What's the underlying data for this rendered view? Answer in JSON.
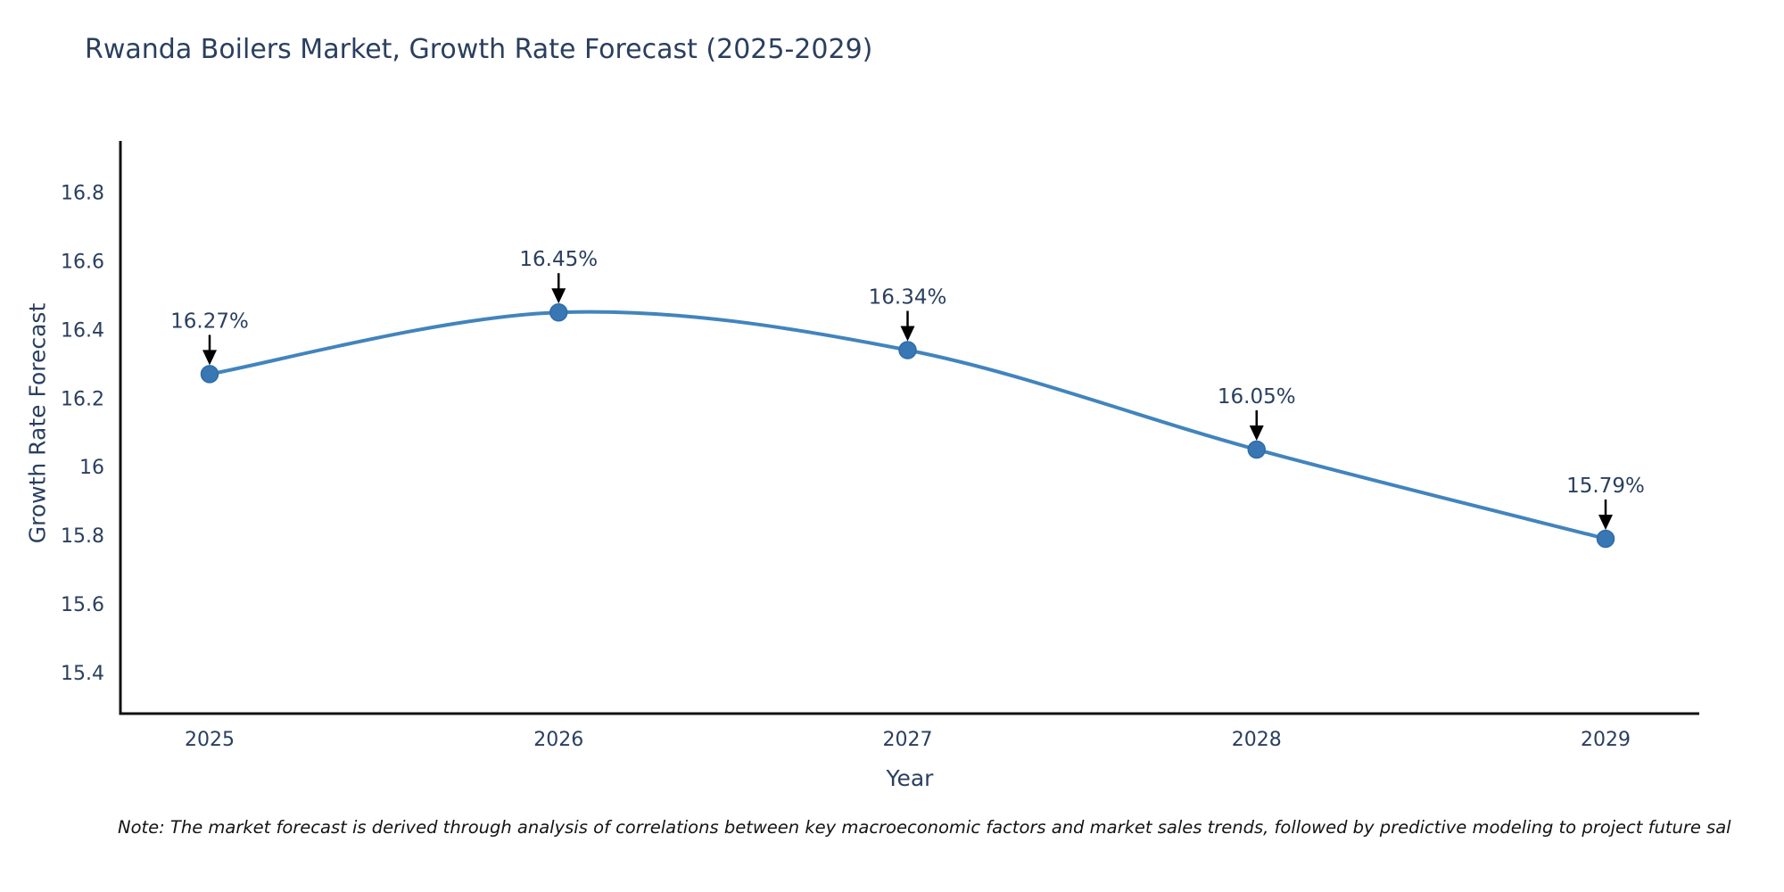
{
  "title": "Rwanda Boilers Market, Growth Rate Forecast (2025-2029)",
  "note": "Note: The market forecast is derived through analysis of correlations between key macroeconomic factors and market sales trends, followed by predictive modeling to project future sal",
  "chart_data": {
    "type": "line",
    "title": "Rwanda Boilers Market, Growth Rate Forecast (2025-2029)",
    "xlabel": "Year",
    "ylabel": "Growth Rate Forecast",
    "x": [
      2025,
      2026,
      2027,
      2028,
      2029
    ],
    "values": [
      16.27,
      16.45,
      16.34,
      16.05,
      15.79
    ],
    "point_labels": [
      "16.27%",
      "16.45%",
      "16.34%",
      "16.05%",
      "15.79%"
    ],
    "xtick_labels": [
      "2025",
      "2026",
      "2027",
      "2028",
      "2029"
    ],
    "yticks": [
      15.4,
      15.6,
      15.8,
      16.0,
      16.2,
      16.4,
      16.6,
      16.8
    ],
    "ytick_labels": [
      "15.4",
      "15.6",
      "15.8",
      "16",
      "16.2",
      "16.4",
      "16.6",
      "16.8"
    ],
    "ylim": [
      15.28,
      16.95
    ],
    "line_shape": "spline",
    "grid": false,
    "legend": false,
    "annotations_have_arrows": true,
    "colors": {
      "line": "#4284bd",
      "marker_fill": "#3876b4",
      "marker_edge": "#2f6da8",
      "axis_line": "#111111",
      "tick_text": "#2a3f5f",
      "annotation_text": "#2a3f5f",
      "annotation_arrow": "#000000",
      "title_text": "#2a3f5f",
      "background": "#ffffff"
    }
  }
}
